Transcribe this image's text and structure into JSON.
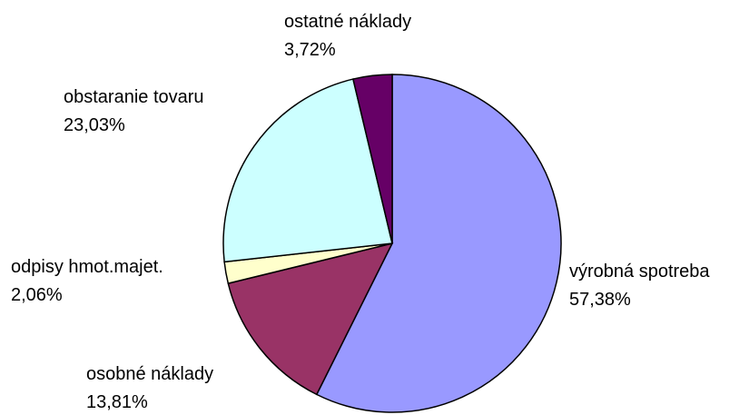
{
  "chart_data": {
    "type": "pie",
    "categories": [
      "výrobná spotreba",
      "osobné náklady",
      "odpisy hmot.majet.",
      "obstaranie tovaru",
      "ostatné náklady"
    ],
    "values": [
      57.38,
      13.81,
      2.06,
      23.03,
      3.72
    ],
    "value_labels": [
      "57,38%",
      "13,81%",
      "2,06%",
      "23,03%",
      "3,72%"
    ],
    "colors": [
      "#9999ff",
      "#993366",
      "#ffffcc",
      "#ccffff",
      "#660066"
    ]
  }
}
